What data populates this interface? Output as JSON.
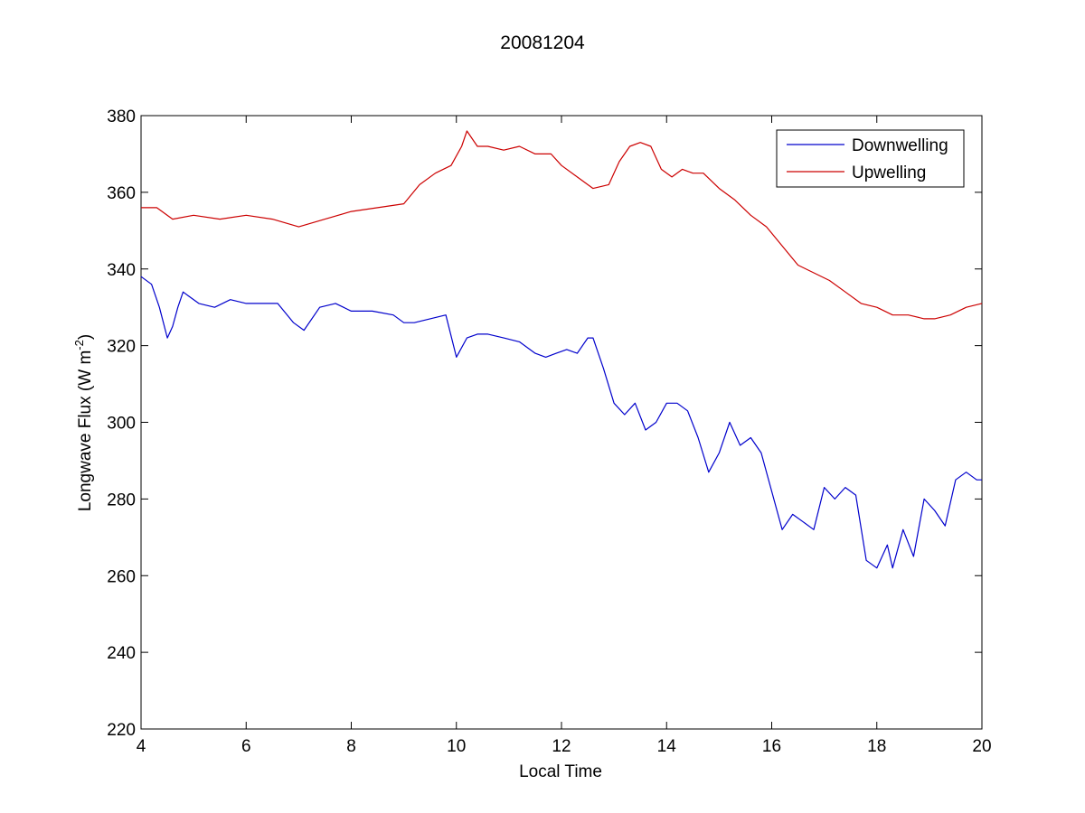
{
  "chart_data": {
    "type": "line",
    "title": "20081204",
    "xlabel": "Local Time",
    "ylabel": {
      "text": "Longwave Flux (W m",
      "superscript": "-2",
      "suffix": ")"
    },
    "xlim": [
      4,
      20
    ],
    "ylim": [
      220,
      380
    ],
    "xticks": [
      4,
      6,
      8,
      10,
      12,
      14,
      16,
      18,
      20
    ],
    "yticks": [
      220,
      240,
      260,
      280,
      300,
      320,
      340,
      360,
      380
    ],
    "grid": false,
    "legend_position": "top-right",
    "series": [
      {
        "name": "Downwelling",
        "color": "#0000cc",
        "x": [
          4.0,
          4.2,
          4.35,
          4.5,
          4.6,
          4.7,
          4.8,
          4.9,
          5.1,
          5.4,
          5.7,
          6.0,
          6.3,
          6.6,
          6.9,
          7.1,
          7.4,
          7.7,
          8.0,
          8.4,
          8.8,
          9.0,
          9.2,
          9.5,
          9.8,
          10.0,
          10.2,
          10.4,
          10.6,
          10.9,
          11.2,
          11.5,
          11.7,
          11.9,
          12.1,
          12.3,
          12.5,
          12.6,
          12.8,
          13.0,
          13.2,
          13.4,
          13.6,
          13.8,
          14.0,
          14.2,
          14.4,
          14.6,
          14.8,
          15.0,
          15.2,
          15.4,
          15.6,
          15.8,
          16.0,
          16.2,
          16.4,
          16.6,
          16.8,
          17.0,
          17.2,
          17.4,
          17.6,
          17.8,
          18.0,
          18.2,
          18.3,
          18.5,
          18.7,
          18.9,
          19.1,
          19.3,
          19.5,
          19.7,
          19.9,
          20.0
        ],
        "y": [
          338,
          336,
          330,
          322,
          325,
          330,
          334,
          333,
          331,
          330,
          332,
          331,
          331,
          331,
          326,
          324,
          330,
          331,
          329,
          329,
          328,
          326,
          326,
          327,
          328,
          317,
          322,
          323,
          323,
          322,
          321,
          318,
          317,
          318,
          319,
          318,
          322,
          322,
          314,
          305,
          302,
          305,
          298,
          300,
          305,
          305,
          303,
          296,
          287,
          292,
          300,
          294,
          296,
          292,
          282,
          272,
          276,
          274,
          272,
          283,
          280,
          283,
          281,
          264,
          262,
          268,
          262,
          272,
          265,
          280,
          277,
          273,
          285,
          287,
          285,
          285
        ]
      },
      {
        "name": "Upwelling",
        "color": "#cc0000",
        "x": [
          4.0,
          4.3,
          4.6,
          5.0,
          5.5,
          6.0,
          6.5,
          7.0,
          7.5,
          8.0,
          8.5,
          9.0,
          9.3,
          9.6,
          9.9,
          10.1,
          10.2,
          10.4,
          10.6,
          10.9,
          11.2,
          11.5,
          11.8,
          12.0,
          12.3,
          12.6,
          12.9,
          13.1,
          13.3,
          13.5,
          13.7,
          13.9,
          14.1,
          14.3,
          14.5,
          14.7,
          15.0,
          15.3,
          15.6,
          15.9,
          16.2,
          16.5,
          16.8,
          17.1,
          17.4,
          17.7,
          18.0,
          18.3,
          18.6,
          18.9,
          19.1,
          19.4,
          19.7,
          20.0
        ],
        "y": [
          356,
          356,
          353,
          354,
          353,
          354,
          353,
          351,
          353,
          355,
          356,
          357,
          362,
          365,
          367,
          372,
          376,
          372,
          372,
          371,
          372,
          370,
          370,
          367,
          364,
          361,
          362,
          368,
          372,
          373,
          372,
          366,
          364,
          366,
          365,
          365,
          361,
          358,
          354,
          351,
          346,
          341,
          339,
          337,
          334,
          331,
          330,
          328,
          328,
          327,
          327,
          328,
          330,
          331
        ]
      }
    ]
  }
}
